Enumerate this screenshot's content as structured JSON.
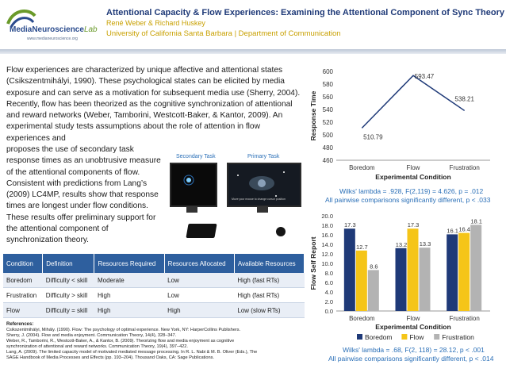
{
  "header": {
    "title": "Attentional Capacity & Flow Experiences: Examining the Attentional Component of Sync Theory",
    "authors": "René Weber & Richard Huskey",
    "affiliation": "University of California Santa Barbara | Department of Communication",
    "logo_text_bold": "MediaNeuroscience",
    "logo_text_lab": "Lab",
    "logo_url": "www.medianeuroscience.org"
  },
  "intro": {
    "paragraph_part1": "Flow experiences are characterized by unique affective and attentional states (Csikszentmihályi, 1990).  These psychological states can be elicited by media exposure and can serve as a motivation for subsequent media use (Sherry, 2004).  Recently, flow has been theorized as the cognitive synchronization of attentional and reward networks (Weber, Tamborini, Westcott-Baker, & Kantor, 2009).  An experimental study tests assumptions about the role of attention in flow experiences and",
    "paragraph_part2": "proposes the use of secondary task response times as an unobtrusive measure of the attentional components of flow.  Consistent with predictions from Lang’s (2009) LC4MP, results show that response times are longest under flow conditions.  These results offer preliminary support for the attentional component of synchronization theory."
  },
  "figure": {
    "secondary_label": "Secondary Task",
    "primary_label": "Primary Task",
    "screen_caption": "Move your mouse to change cursor position"
  },
  "table": {
    "headers": [
      "Condition",
      "Definition",
      "Resources Required",
      "Resources Allocated",
      "Available Resources"
    ],
    "rows": [
      [
        "Boredom",
        "Difficulty < skill",
        "Moderate",
        "Low",
        "High (fast RTs)"
      ],
      [
        "Frustration",
        "Difficulty > skill",
        "High",
        "Low",
        "High (fast RTs)"
      ],
      [
        "Flow",
        "Difficulty = skill",
        "High",
        "High",
        "Low (slow RTs)"
      ]
    ]
  },
  "references": {
    "heading": "References:",
    "items": [
      "Csikszentmihályi, Mihály. (1990). Flow: The psychology of optimal experience. New York, NY: HarperCollins Publishers.",
      "Sherry, J. (2004). Flow and media enjoyment. Communication Theory, 14(4), 328–347.",
      "Weber, R., Tamborini, R., Westcott-Baker, A., & Kantor, B. (2009). Theorizing flow and media enjoyment as cognitive",
      "synchronization of attentional and reward networks. Communication Theory, 19(4), 397–422.",
      "Lang, A. (2009). The limited capacity model of motivated mediated message processing. In R. L. Nabi & M. B. Oliver (Eds.), The",
      "SAGE Handbook of Media Processes and Effects (pp. 193–204). Thousand Oaks, CA: Sage Publications."
    ]
  },
  "stats": {
    "chart1_line1": "Wilks' lambda = .928, F(2,119) = 4.626, p = .012",
    "chart1_line2": "All pairwise comparisons significantly different, p < .033",
    "chart2_line1": "Wilks' lambda = .68, F(2, 118) = 28.12, p < .001",
    "chart2_line2": "All pairwise comparisons significantly different, p < .014"
  },
  "chart_data": [
    {
      "type": "line",
      "categories": [
        "Boredom",
        "Flow",
        "Frustration"
      ],
      "values": [
        510.79,
        593.47,
        538.21
      ],
      "data_labels": [
        "510.79",
        "593.47",
        "538.21"
      ],
      "xlabel": "Experimental Condition",
      "ylabel": "Response Time",
      "ylim": [
        460,
        600
      ],
      "yticks": [
        460,
        480,
        500,
        520,
        540,
        560,
        580,
        600
      ],
      "color": "#1f3a78"
    },
    {
      "type": "bar",
      "categories": [
        "Boredom",
        "Flow",
        "Frustration"
      ],
      "xlabel": "Experimental Condition",
      "ylabel": "Flow Self Report",
      "ylim": [
        0,
        20
      ],
      "yticks": [
        "0.0",
        "2.0",
        "4.0",
        "6.0",
        "8.0",
        "10.0",
        "12.0",
        "14.0",
        "16.0",
        "18.0",
        "20.0"
      ],
      "legend": "bottom",
      "series": [
        {
          "name": "Boredom",
          "values": [
            17.3,
            13.2,
            16.1
          ],
          "labels": [
            "17.3",
            "13.2",
            "16.1"
          ],
          "color": "#1f3a78"
        },
        {
          "name": "Flow",
          "values": [
            12.7,
            17.3,
            16.4
          ],
          "labels": [
            "12.7",
            "17.3",
            "16.4"
          ],
          "color": "#f5c518"
        },
        {
          "name": "Frustration",
          "values": [
            8.6,
            13.3,
            18.1
          ],
          "labels": [
            "8.6",
            "13.3",
            "18.1"
          ],
          "color": "#b3b3b3"
        }
      ]
    }
  ]
}
